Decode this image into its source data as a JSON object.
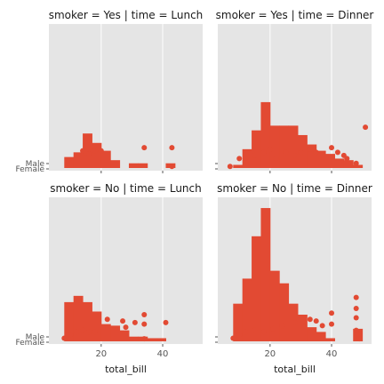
{
  "chart_data": {
    "type": "facet-grid",
    "x_label": "total_bill",
    "x_ticks": [
      20,
      40
    ],
    "xlim": [
      3,
      53
    ],
    "y_tick_labels": [
      "Male",
      "Female"
    ],
    "style": {
      "background": "#E5E5E5",
      "grid": "#FFFFFF",
      "bar": "#E24A33",
      "point": "#E24A33"
    },
    "panels": [
      {
        "title": "smoker = Yes | time = Lunch",
        "hist": {
          "edges": [
            8,
            11,
            14,
            17,
            20,
            23,
            26,
            29,
            32,
            35,
            38,
            41,
            44
          ],
          "counts": [
            0.35,
            0.5,
            1.1,
            0.8,
            0.55,
            0.25,
            0,
            0.15,
            0.15,
            0,
            0,
            0.15
          ]
        },
        "points": [
          [
            14,
            0.55
          ],
          [
            15,
            0.5
          ],
          [
            16,
            0.45
          ],
          [
            18,
            0.55
          ],
          [
            19,
            0.6
          ],
          [
            20,
            0.55
          ],
          [
            34,
            0.65
          ],
          [
            43,
            0.65
          ],
          [
            43,
            0.05
          ]
        ]
      },
      {
        "title": "smoker = Yes | time = Dinner",
        "hist": {
          "edges": [
            8,
            11,
            14,
            17,
            20,
            23,
            26,
            29,
            32,
            35,
            38,
            41,
            44,
            47,
            50
          ],
          "counts": [
            0.1,
            0.6,
            1.2,
            2.1,
            1.35,
            1.35,
            1.35,
            1.05,
            0.75,
            0.55,
            0.45,
            0.3,
            0.25,
            0.1
          ]
        },
        "points": [
          [
            7,
            0.05
          ],
          [
            10,
            0.3
          ],
          [
            12,
            0.3
          ],
          [
            15,
            0.4
          ],
          [
            18,
            0.5
          ],
          [
            20,
            0.6
          ],
          [
            22,
            0.3
          ],
          [
            25,
            0.5
          ],
          [
            28,
            0.4
          ],
          [
            30,
            0.5
          ],
          [
            33,
            0.6
          ],
          [
            35,
            0.5
          ],
          [
            37,
            0.4
          ],
          [
            40,
            0.65
          ],
          [
            42,
            0.5
          ],
          [
            44,
            0.4
          ],
          [
            45,
            0.3
          ],
          [
            48,
            0.15
          ],
          [
            51,
            1.3
          ]
        ]
      },
      {
        "title": "smoker = No | time = Lunch",
        "hist": {
          "edges": [
            8,
            11,
            14,
            17,
            20,
            23,
            26,
            29,
            32,
            35,
            38,
            41
          ],
          "counts": [
            1.25,
            1.45,
            1.25,
            0.95,
            0.55,
            0.5,
            0.35,
            0.15,
            0.15,
            0.1,
            0.1
          ]
        },
        "points": [
          [
            8,
            0.1
          ],
          [
            10,
            0.2
          ],
          [
            12,
            0.3
          ],
          [
            14,
            0.35
          ],
          [
            16,
            0.3
          ],
          [
            18,
            0.3
          ],
          [
            22,
            0.7
          ],
          [
            27,
            0.65
          ],
          [
            28,
            0.45
          ],
          [
            31,
            0.6
          ],
          [
            34,
            0.85
          ],
          [
            34,
            0.55
          ],
          [
            41,
            0.6
          ],
          [
            34,
            0.08
          ]
        ]
      },
      {
        "title": "smoker = No | time = Dinner",
        "hist": {
          "edges": [
            8,
            11,
            14,
            17,
            20,
            23,
            26,
            29,
            32,
            35,
            38,
            41,
            44,
            47,
            50
          ],
          "counts": [
            1.2,
            2.0,
            3.35,
            4.25,
            2.25,
            1.85,
            1.2,
            0.85,
            0.45,
            0.3,
            0.1,
            0,
            0,
            0.4
          ]
        },
        "points": [
          [
            8,
            0.1
          ],
          [
            10,
            0.2
          ],
          [
            12,
            0.3
          ],
          [
            15,
            0.35
          ],
          [
            18,
            0.3
          ],
          [
            21,
            0.4
          ],
          [
            24,
            0.5
          ],
          [
            28,
            0.6
          ],
          [
            31,
            0.5
          ],
          [
            33,
            0.7
          ],
          [
            35,
            0.65
          ],
          [
            37,
            0.5
          ],
          [
            40,
            0.9
          ],
          [
            40,
            0.55
          ],
          [
            48,
            1.4
          ],
          [
            48,
            1.05
          ],
          [
            48,
            0.75
          ],
          [
            48,
            0.35
          ],
          [
            49,
            0.08
          ]
        ]
      }
    ]
  }
}
